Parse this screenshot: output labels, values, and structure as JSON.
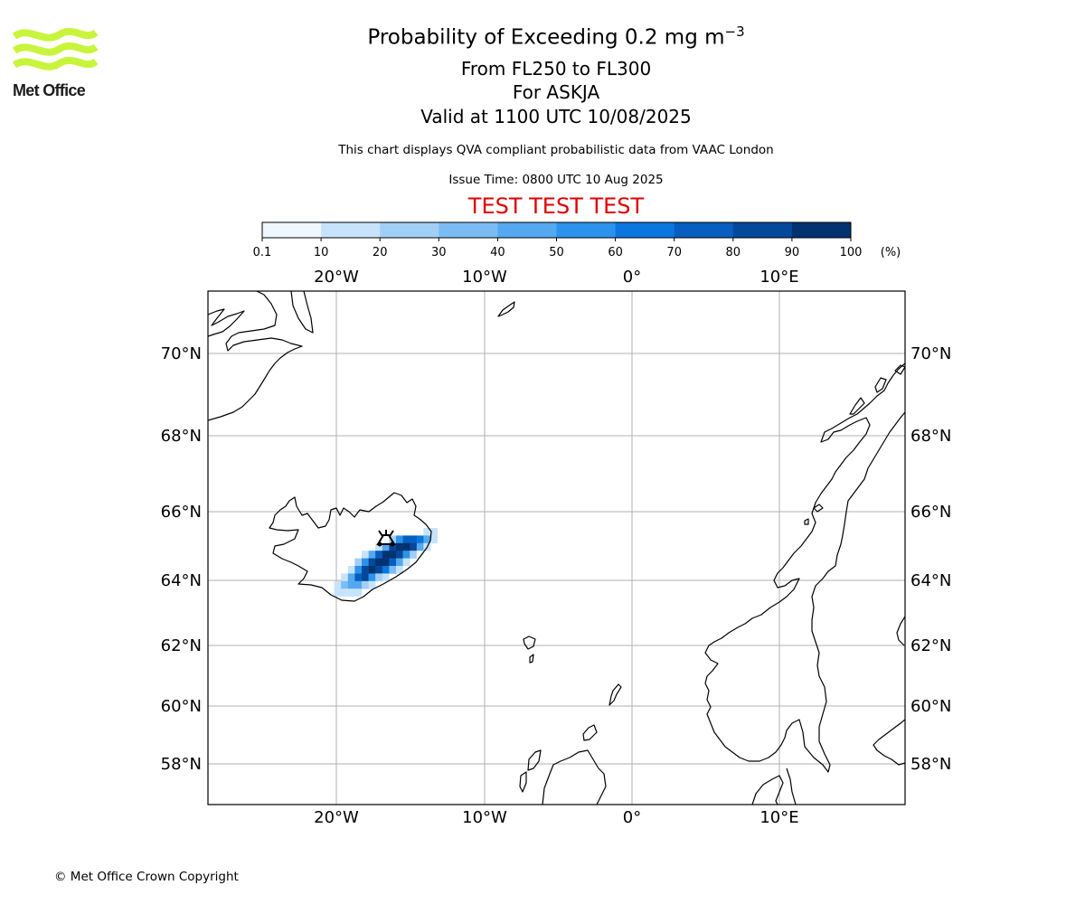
{
  "header": {
    "title_main": "Probability of Exceeding 0.2 mg m",
    "title_superscript": "−3",
    "level_range": "From FL250 to FL300",
    "volcano_line": "For ASKJA",
    "valid_time": "Valid at 1100 UTC 10/08/2025",
    "description": "This chart displays QVA compliant probabilistic data from VAAC London",
    "issue_time": "Issue Time: 0800 UTC 10 Aug 2025",
    "test_banner": "TEST TEST TEST"
  },
  "logo": {
    "text": "Met Office",
    "color": "#c8f53c"
  },
  "colorbar": {
    "ticks": [
      "0.1",
      "10",
      "20",
      "30",
      "40",
      "50",
      "60",
      "70",
      "80",
      "90",
      "100"
    ],
    "unit": "(%)",
    "colors": [
      "#eef6ff",
      "#c7e3fb",
      "#a2cff7",
      "#7bbcf3",
      "#54a8ef",
      "#2c93ec",
      "#0b76df",
      "#065ec0",
      "#04489a",
      "#033271",
      "#021f4a"
    ]
  },
  "map": {
    "lon_labels": [
      "20°W",
      "10°W",
      "0°",
      "10°E"
    ],
    "lat_labels": [
      "70°N",
      "68°N",
      "66°N",
      "64°N",
      "62°N",
      "60°N",
      "58°N"
    ],
    "volcano_name": "ASKJA",
    "volcano_symbol": "volcano-triangle-icon"
  },
  "ash_cells": [
    {
      "row": 0,
      "col": 14,
      "p": 15
    },
    {
      "row": 0,
      "col": 15,
      "p": 10
    },
    {
      "row": 1,
      "col": 9,
      "p": 25
    },
    {
      "row": 1,
      "col": 10,
      "p": 55
    },
    {
      "row": 1,
      "col": 11,
      "p": 75
    },
    {
      "row": 1,
      "col": 12,
      "p": 75
    },
    {
      "row": 1,
      "col": 13,
      "p": 65
    },
    {
      "row": 1,
      "col": 14,
      "p": 40
    },
    {
      "row": 1,
      "col": 15,
      "p": 10
    },
    {
      "row": 2,
      "col": 7,
      "p": 15
    },
    {
      "row": 2,
      "col": 8,
      "p": 45
    },
    {
      "row": 2,
      "col": 9,
      "p": 85
    },
    {
      "row": 2,
      "col": 10,
      "p": 95
    },
    {
      "row": 2,
      "col": 11,
      "p": 95
    },
    {
      "row": 2,
      "col": 12,
      "p": 85
    },
    {
      "row": 2,
      "col": 13,
      "p": 45
    },
    {
      "row": 2,
      "col": 14,
      "p": 15
    },
    {
      "row": 3,
      "col": 5,
      "p": 15
    },
    {
      "row": 3,
      "col": 6,
      "p": 45
    },
    {
      "row": 3,
      "col": 7,
      "p": 75
    },
    {
      "row": 3,
      "col": 8,
      "p": 95
    },
    {
      "row": 3,
      "col": 9,
      "p": 95
    },
    {
      "row": 3,
      "col": 10,
      "p": 85
    },
    {
      "row": 3,
      "col": 11,
      "p": 55
    },
    {
      "row": 3,
      "col": 12,
      "p": 25
    },
    {
      "row": 3,
      "col": 13,
      "p": 5
    },
    {
      "row": 4,
      "col": 4,
      "p": 25
    },
    {
      "row": 4,
      "col": 5,
      "p": 55
    },
    {
      "row": 4,
      "col": 6,
      "p": 85
    },
    {
      "row": 4,
      "col": 7,
      "p": 95
    },
    {
      "row": 4,
      "col": 8,
      "p": 95
    },
    {
      "row": 4,
      "col": 9,
      "p": 75
    },
    {
      "row": 4,
      "col": 10,
      "p": 45
    },
    {
      "row": 4,
      "col": 11,
      "p": 15
    },
    {
      "row": 5,
      "col": 3,
      "p": 15
    },
    {
      "row": 5,
      "col": 4,
      "p": 55
    },
    {
      "row": 5,
      "col": 5,
      "p": 85
    },
    {
      "row": 5,
      "col": 6,
      "p": 95
    },
    {
      "row": 5,
      "col": 7,
      "p": 85
    },
    {
      "row": 5,
      "col": 8,
      "p": 65
    },
    {
      "row": 5,
      "col": 9,
      "p": 35
    },
    {
      "row": 5,
      "col": 10,
      "p": 15
    },
    {
      "row": 6,
      "col": 2,
      "p": 15
    },
    {
      "row": 6,
      "col": 3,
      "p": 45
    },
    {
      "row": 6,
      "col": 4,
      "p": 75
    },
    {
      "row": 6,
      "col": 5,
      "p": 85
    },
    {
      "row": 6,
      "col": 6,
      "p": 55
    },
    {
      "row": 6,
      "col": 7,
      "p": 25
    },
    {
      "row": 6,
      "col": 8,
      "p": 10
    },
    {
      "row": 7,
      "col": 1,
      "p": 10
    },
    {
      "row": 7,
      "col": 2,
      "p": 35
    },
    {
      "row": 7,
      "col": 3,
      "p": 45
    },
    {
      "row": 7,
      "col": 4,
      "p": 45
    },
    {
      "row": 7,
      "col": 5,
      "p": 25
    },
    {
      "row": 7,
      "col": 6,
      "p": 10
    },
    {
      "row": 8,
      "col": 1,
      "p": 10
    },
    {
      "row": 8,
      "col": 2,
      "p": 15
    },
    {
      "row": 8,
      "col": 3,
      "p": 15
    },
    {
      "row": 8,
      "col": 4,
      "p": 10
    }
  ],
  "footer": {
    "copyright": "© Met Office Crown Copyright"
  }
}
